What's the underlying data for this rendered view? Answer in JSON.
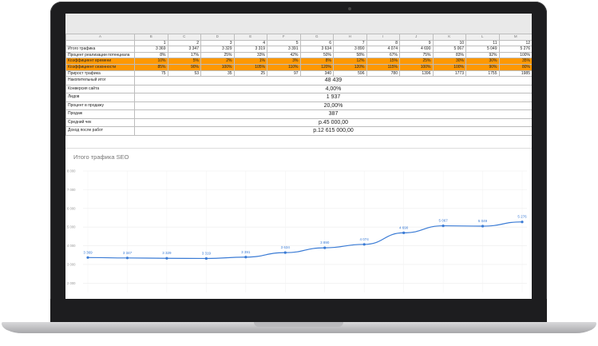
{
  "sheet": {
    "col_headers": [
      "A",
      "B",
      "C",
      "D",
      "E",
      "F",
      "G",
      "H",
      "I",
      "J",
      "K",
      "L",
      "M"
    ],
    "months": [
      "1",
      "2",
      "3",
      "4",
      "5",
      "6",
      "7",
      "8",
      "9",
      "10",
      "11",
      "12"
    ],
    "rows": [
      {
        "label": "Итого трафика",
        "values": [
          "3 369",
          "3 347",
          "3 329",
          "3 319",
          "3 391",
          "3 634",
          "3 890",
          "4 074",
          "4 690",
          "5 067",
          "5 049",
          "5 276"
        ],
        "orange": false
      },
      {
        "label": "Процент реализации потенциала",
        "values": [
          "8%",
          "17%",
          "25%",
          "33%",
          "42%",
          "50%",
          "58%",
          "67%",
          "75%",
          "83%",
          "92%",
          "100%"
        ],
        "orange": false
      },
      {
        "label": "Коэффициент времени",
        "values": [
          "10%",
          "5%",
          "2%",
          "1%",
          "3%",
          "8%",
          "12%",
          "15%",
          "25%",
          "30%",
          "30%",
          "35%"
        ],
        "orange": true
      },
      {
        "label": "Коэффициент сезонности",
        "values": [
          "85%",
          "90%",
          "100%",
          "105%",
          "110%",
          "120%",
          "120%",
          "115%",
          "100%",
          "100%",
          "90%",
          "80%"
        ],
        "orange": true
      },
      {
        "label": "Прирост трафика",
        "values": [
          "75",
          "53",
          "35",
          "25",
          "97",
          "340",
          "596",
          "780",
          "1396",
          "1773",
          "1755",
          "1985"
        ],
        "orange": false
      }
    ],
    "summary": [
      {
        "label": "Накопительный итог",
        "value": "48 439"
      },
      {
        "label": "Конверсия сайта",
        "value": "4,00%"
      },
      {
        "label": "Лидов",
        "value": "1 937"
      },
      {
        "label": "Процент в продажу",
        "value": "20,00%"
      },
      {
        "label": "Продаж",
        "value": "387"
      },
      {
        "label": "Средний чек",
        "value": "р.45 000,00"
      },
      {
        "label": "Доход после работ",
        "value": "р.12 615 000,00"
      }
    ]
  },
  "chart_data": {
    "type": "line",
    "title": "Итого трафика SEO",
    "x": [
      1,
      2,
      3,
      4,
      5,
      6,
      7,
      8,
      9,
      10,
      11,
      12
    ],
    "series": [
      {
        "values": [
          3369,
          3347,
          3329,
          3319,
          3391,
          3634,
          3890,
          4074,
          4690,
          5067,
          5049,
          5276
        ]
      }
    ],
    "data_labels": [
      "3 369",
      "3 347",
      "3 329",
      "3 319",
      "3 391",
      "3 634",
      "3 890",
      "4 074",
      "4 690",
      "5 067",
      "5 049",
      "5 276"
    ],
    "yticks": [
      "8 000",
      "7 000",
      "6 000",
      "5 000",
      "4 000",
      "3 000",
      "2 000"
    ],
    "ylim": [
      1500,
      8000
    ],
    "line_color": "#3a7bd5",
    "grid": true
  }
}
